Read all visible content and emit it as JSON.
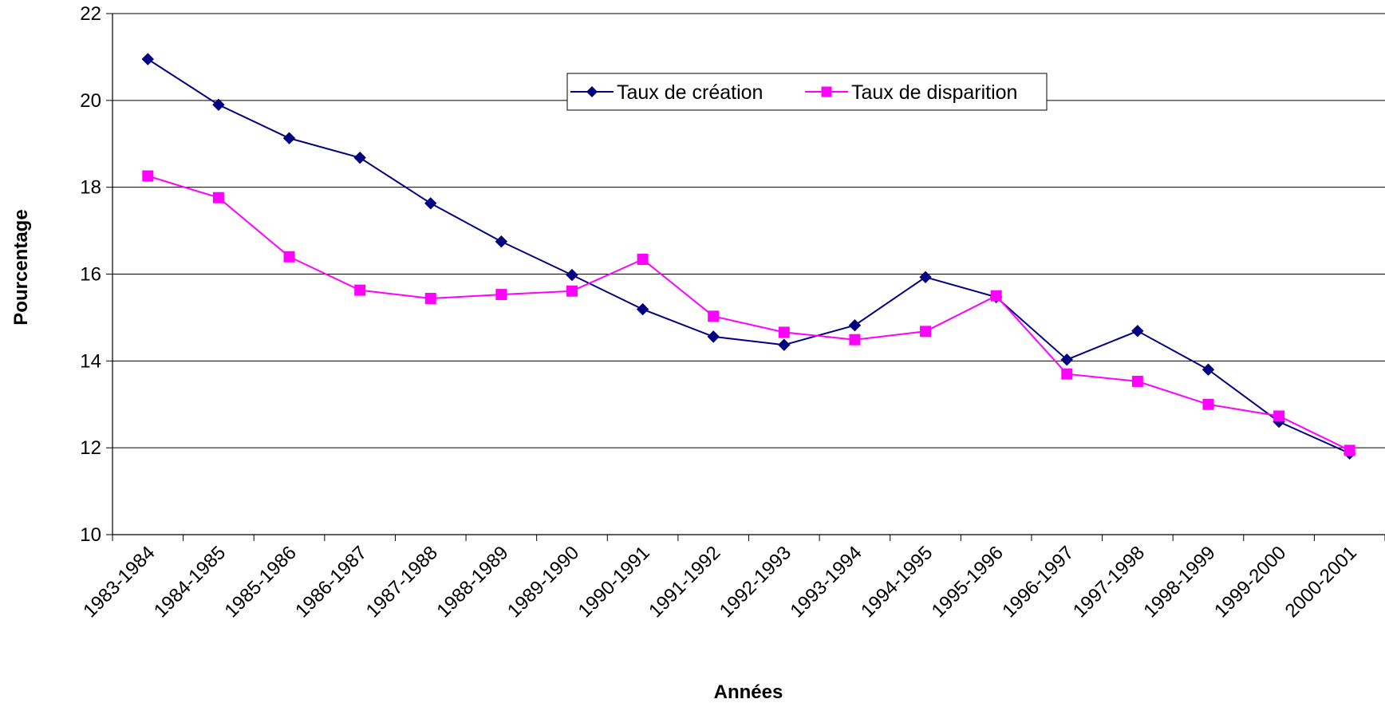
{
  "chart_data": {
    "type": "line",
    "title": "",
    "xlabel": "Années",
    "ylabel": "Pourcentage",
    "ylim": [
      10,
      22
    ],
    "yticks": [
      "10",
      "12",
      "14",
      "16",
      "18",
      "20",
      "22"
    ],
    "grid": true,
    "legend_position": "top-right",
    "categories": [
      "1983-1984",
      "1984-1985",
      "1985-1986",
      "1986-1987",
      "1987-1988",
      "1988-1989",
      "1989-1990",
      "1990-1991",
      "1991-1992",
      "1992-1993",
      "1993-1994",
      "1994-1995",
      "1995-1996",
      "1996-1997",
      "1997-1998",
      "1998-1999",
      "1999-2000",
      "2000-2001"
    ],
    "series": [
      {
        "name": "Taux de création",
        "color": "#000080",
        "marker": "diamond",
        "values": [
          20.95,
          19.9,
          19.13,
          18.68,
          17.63,
          16.75,
          15.98,
          15.19,
          14.56,
          14.37,
          14.82,
          15.93,
          15.47,
          14.03,
          14.69,
          13.8,
          12.6,
          11.87
        ]
      },
      {
        "name": "Taux de disparition",
        "color": "#FF00FF",
        "marker": "square",
        "values": [
          18.26,
          17.76,
          16.4,
          15.63,
          15.44,
          15.53,
          15.61,
          16.34,
          15.03,
          14.66,
          14.49,
          14.68,
          15.5,
          13.7,
          13.53,
          13.0,
          12.73,
          11.94
        ]
      }
    ]
  }
}
